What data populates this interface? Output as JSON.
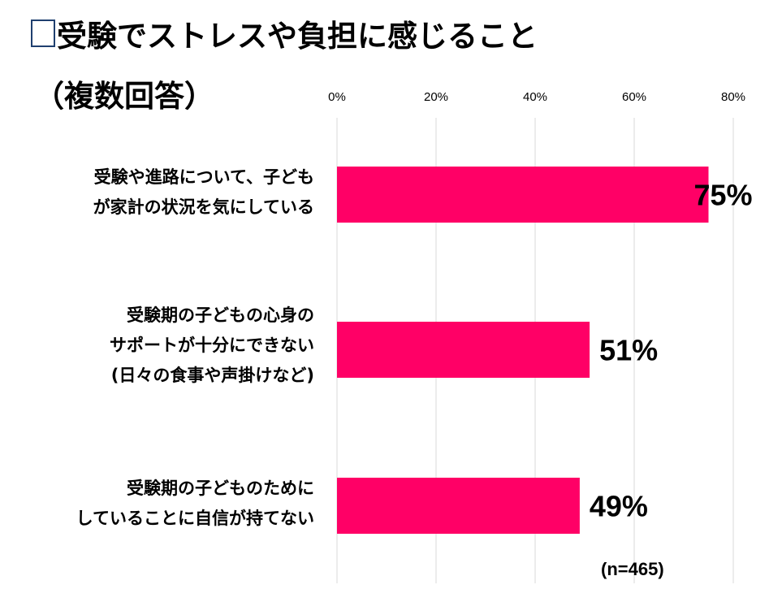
{
  "chart_data": {
    "type": "bar",
    "orientation": "horizontal",
    "title": "受験でストレスや負担に感じること",
    "subtitle": "（複数回答）",
    "categories": [
      [
        "受験や進路について、子ども",
        "が家計の状況を気にしている"
      ],
      [
        "受験期の子どもの心身の",
        "サポートが十分にできない",
        "(日々の食事や声掛けなど)"
      ],
      [
        "受験期の子どものために",
        "していることに自信が持てない"
      ]
    ],
    "values": [
      75,
      51,
      49
    ],
    "data_labels": [
      "75%",
      "51%",
      "49%"
    ],
    "xlim": [
      0,
      80
    ],
    "ticks": [
      "0%",
      "20%",
      "40%",
      "60%",
      "80%"
    ],
    "tick_values": [
      0,
      20,
      40,
      60,
      80
    ],
    "grid": true,
    "bar_color": "#FF0066",
    "note": "(n=465)"
  }
}
